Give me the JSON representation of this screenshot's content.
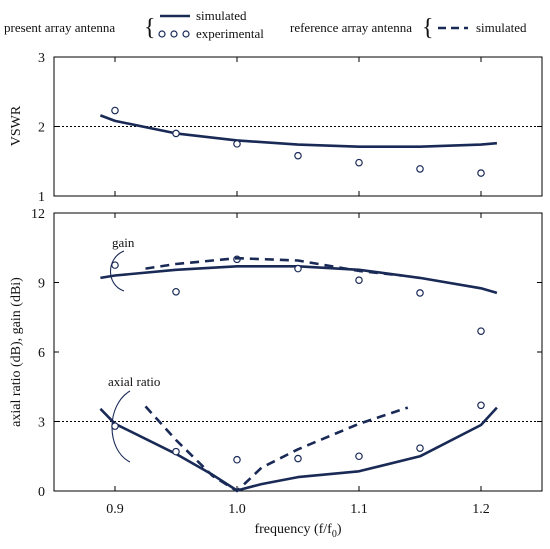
{
  "chart_data": [
    {
      "type": "line",
      "panel": "top",
      "ylabel": "VSWR",
      "ylim": [
        1,
        3
      ],
      "yticks": [
        1,
        2,
        3
      ],
      "xlim": [
        0.85,
        1.25
      ],
      "reference_line": 2,
      "grid": false,
      "series": [
        {
          "name": "simulated",
          "group": "present array antenna",
          "style": "solid",
          "color": "#1a2a57",
          "x": [
            0.888,
            0.9,
            0.95,
            1.0,
            1.05,
            1.1,
            1.15,
            1.2,
            1.213
          ],
          "y": [
            2.16,
            2.08,
            1.9,
            1.8,
            1.74,
            1.71,
            1.71,
            1.74,
            1.76
          ]
        },
        {
          "name": "experimental",
          "group": "present array antenna",
          "style": "circle",
          "color": "#1a2a57",
          "x": [
            0.9,
            0.95,
            1.0,
            1.05,
            1.1,
            1.15,
            1.2
          ],
          "y": [
            2.23,
            1.9,
            1.75,
            1.58,
            1.48,
            1.39,
            1.33
          ]
        }
      ]
    },
    {
      "type": "line",
      "panel": "bottom",
      "ylabel": "axial ratio (dB), gain (dBi)",
      "xlabel": "frequency (f/f0)",
      "ylim": [
        0,
        12
      ],
      "yticks": [
        0,
        3,
        6,
        9,
        12
      ],
      "xlim": [
        0.85,
        1.25
      ],
      "xticks": [
        0.9,
        1.0,
        1.1,
        1.2
      ],
      "xtick_labels": [
        "0.9",
        "1.0",
        "1.1",
        "1.2"
      ],
      "reference_line": 3,
      "grid": false,
      "annotations": [
        "gain",
        "axial ratio"
      ],
      "series": [
        {
          "name": "gain simulated",
          "group": "present array antenna",
          "style": "solid",
          "color": "#1a2a57",
          "x": [
            0.888,
            0.9,
            0.95,
            1.0,
            1.05,
            1.1,
            1.15,
            1.2,
            1.213
          ],
          "y": [
            9.2,
            9.3,
            9.55,
            9.7,
            9.7,
            9.55,
            9.2,
            8.75,
            8.55
          ]
        },
        {
          "name": "gain experimental",
          "group": "present array antenna",
          "style": "circle",
          "color": "#1a2a57",
          "x": [
            0.9,
            0.95,
            1.0,
            1.05,
            1.1,
            1.15,
            1.2
          ],
          "y": [
            9.75,
            8.6,
            10.0,
            9.6,
            9.1,
            8.55,
            6.9
          ]
        },
        {
          "name": "gain simulated",
          "group": "reference array antenna",
          "style": "dashed",
          "color": "#1a2a57",
          "x": [
            0.925,
            0.95,
            1.0,
            1.05,
            1.1,
            1.135
          ],
          "y": [
            9.6,
            9.8,
            10.05,
            9.95,
            9.5,
            9.3
          ]
        },
        {
          "name": "axial ratio simulated",
          "group": "present array antenna",
          "style": "solid",
          "color": "#1a2a57",
          "x": [
            0.888,
            0.9,
            0.95,
            0.98,
            1.0,
            1.02,
            1.05,
            1.1,
            1.15,
            1.2,
            1.213
          ],
          "y": [
            3.55,
            2.9,
            1.6,
            0.7,
            0.02,
            0.3,
            0.6,
            0.85,
            1.5,
            2.85,
            3.6
          ]
        },
        {
          "name": "axial ratio experimental",
          "group": "present array antenna",
          "style": "circle",
          "color": "#1a2a57",
          "x": [
            0.9,
            0.95,
            1.0,
            1.05,
            1.1,
            1.15,
            1.2
          ],
          "y": [
            2.8,
            1.7,
            1.35,
            1.4,
            1.5,
            1.85,
            3.7
          ]
        },
        {
          "name": "axial ratio simulated",
          "group": "reference array antenna",
          "style": "dashed",
          "color": "#1a2a57",
          "x": [
            0.925,
            0.95,
            0.98,
            1.0,
            1.02,
            1.05,
            1.1,
            1.14
          ],
          "y": [
            3.65,
            2.2,
            0.65,
            0.0,
            1.0,
            1.8,
            2.9,
            3.6
          ]
        }
      ]
    }
  ],
  "legend": {
    "present_label": "present array antenna",
    "reference_label": "reference array antenna",
    "simulated_label": "simulated",
    "experimental_label": "experimental",
    "reference_simulated_label": "simulated"
  },
  "labels": {
    "gain": "gain",
    "axial_ratio": "axial ratio",
    "vswr": "VSWR",
    "bottom_ylabel": "axial ratio (dB), gain (dBi)",
    "xlabel_main": "frequency (f/f",
    "xlabel_sub": "0",
    "xlabel_end": ")"
  }
}
